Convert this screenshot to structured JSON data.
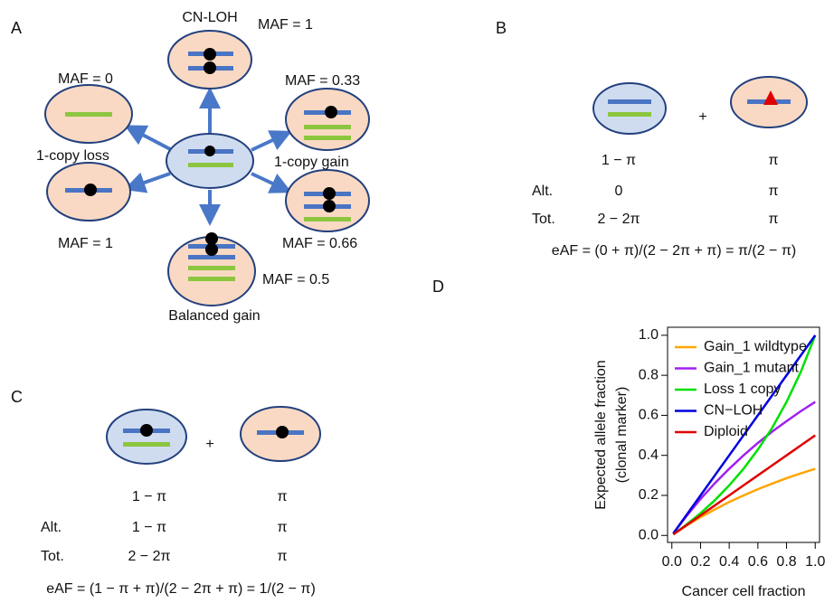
{
  "panel_a": {
    "label": "A",
    "texts": [
      "CN-LOH",
      "MAF = 1",
      "MAF = 0",
      "MAF = 0.33",
      "1-copy loss",
      "1-copy gain",
      "MAF = 1",
      "MAF = 0.66",
      "MAF = 0.5",
      "Balanced gain"
    ]
  },
  "panel_b": {
    "label": "B",
    "plus": "+",
    "rows": [
      [
        "",
        "1 − π",
        "π"
      ],
      [
        "Alt.",
        "0",
        "π"
      ],
      [
        "Tot.",
        "2 − 2π",
        "π"
      ]
    ],
    "formula": "eAF = (0 + π)/(2 − 2π + π) = π/(2 − π)"
  },
  "panel_c": {
    "label": "C",
    "plus": "+",
    "rows": [
      [
        "",
        "1 − π",
        "π"
      ],
      [
        "Alt.",
        "1 − π",
        "π"
      ],
      [
        "Tot.",
        "2 − 2π",
        "π"
      ]
    ],
    "formula": "eAF = (1 − π + π)/(2 − 2π + π) = 1/(2 − π)"
  },
  "chart_data": {
    "type": "line",
    "panel_label": "D",
    "xlabel": "Cancer cell fraction",
    "ylabel": [
      "Expected allele fraction",
      "(clonal marker)"
    ],
    "x": [
      0.01,
      0.1,
      0.2,
      0.3,
      0.4,
      0.5,
      0.6,
      0.7,
      0.8,
      0.9,
      1.0
    ],
    "series": [
      {
        "name": "Gain_1 wildtype",
        "color": "#ffa500",
        "values": [
          0.005,
          0.048,
          0.091,
          0.13,
          0.167,
          0.2,
          0.231,
          0.259,
          0.286,
          0.31,
          0.333
        ]
      },
      {
        "name": "Gain_1 mutant",
        "color": "#a020f0",
        "values": [
          0.01,
          0.095,
          0.182,
          0.261,
          0.333,
          0.4,
          0.462,
          0.519,
          0.571,
          0.621,
          0.667
        ]
      },
      {
        "name": "Loss 1 copy",
        "color": "#00e000",
        "values": [
          0.005,
          0.053,
          0.111,
          0.176,
          0.25,
          0.333,
          0.429,
          0.538,
          0.667,
          0.818,
          1.0
        ]
      },
      {
        "name": "CN−LOH",
        "color": "#0000e0",
        "values": [
          0.01,
          0.1,
          0.2,
          0.3,
          0.4,
          0.5,
          0.6,
          0.7,
          0.8,
          0.9,
          1.0
        ]
      },
      {
        "name": "Diploid",
        "color": "#e00000",
        "values": [
          0.005,
          0.05,
          0.1,
          0.15,
          0.2,
          0.25,
          0.3,
          0.35,
          0.4,
          0.45,
          0.5
        ]
      }
    ],
    "xlim": [
      -0.03,
      1.03
    ],
    "ylim": [
      -0.035,
      1.04
    ],
    "xticks": [
      {
        "value": 0,
        "label": "0.0"
      },
      0.2,
      0.4,
      0.6,
      0.8,
      {
        "value": 1,
        "label": "1.0"
      }
    ],
    "yticks": [
      {
        "value": 0,
        "label": "0.0"
      },
      0.2,
      0.4,
      0.6,
      0.8,
      {
        "value": 1,
        "label": "1.0"
      }
    ],
    "legend": "top-left"
  }
}
